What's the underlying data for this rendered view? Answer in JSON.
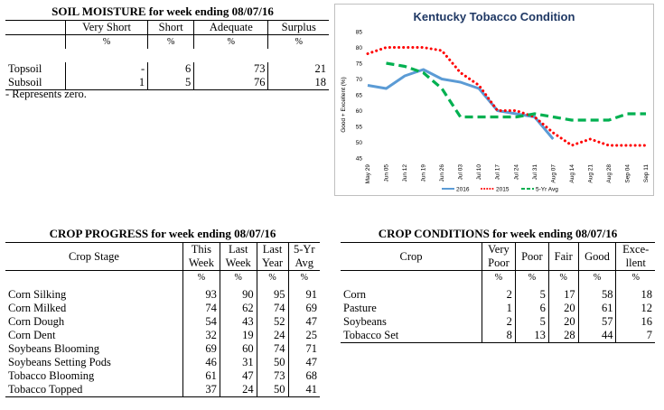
{
  "soil": {
    "title": "SOIL MOISTURE for week ending 08/07/16",
    "headers": [
      "Very Short",
      "Short",
      "Adequate",
      "Surplus"
    ],
    "pct": "%",
    "rows": [
      {
        "label": "Topsoil",
        "values": [
          "-",
          "6",
          "73",
          "21"
        ]
      },
      {
        "label": "Subsoil",
        "values": [
          "1",
          "5",
          "76",
          "18"
        ]
      }
    ],
    "note": "- Represents zero."
  },
  "progress": {
    "title": "CROP PROGRESS for week ending 08/07/16",
    "stage_header": "Crop Stage",
    "headers": [
      [
        "This",
        "Week"
      ],
      [
        "Last",
        "Week"
      ],
      [
        "Last",
        "Year"
      ],
      [
        "5-Yr",
        "Avg"
      ]
    ],
    "pct": "%",
    "rows": [
      {
        "label": "Corn Silking",
        "values": [
          "93",
          "90",
          "95",
          "91"
        ]
      },
      {
        "label": "Corn Milked",
        "values": [
          "74",
          "62",
          "74",
          "69"
        ]
      },
      {
        "label": "Corn Dough",
        "values": [
          "54",
          "43",
          "52",
          "47"
        ]
      },
      {
        "label": "Corn Dent",
        "values": [
          "32",
          "19",
          "24",
          "25"
        ]
      },
      {
        "label": "Soybeans Blooming",
        "values": [
          "69",
          "60",
          "74",
          "71"
        ]
      },
      {
        "label": "Soybeans Setting Pods",
        "values": [
          "46",
          "31",
          "50",
          "47"
        ]
      },
      {
        "label": "Tobacco Blooming",
        "values": [
          "61",
          "47",
          "73",
          "68"
        ]
      },
      {
        "label": "Tobacco Topped",
        "values": [
          "37",
          "24",
          "50",
          "41"
        ]
      }
    ]
  },
  "conditions": {
    "title": "CROP CONDITIONS for week ending 08/07/16",
    "crop_header": "Crop",
    "headers": [
      [
        "Very",
        "Poor"
      ],
      [
        "Poor",
        ""
      ],
      [
        "Fair",
        ""
      ],
      [
        "Good",
        ""
      ],
      [
        "Exce-",
        "llent"
      ]
    ],
    "pct": "%",
    "rows": [
      {
        "label": "Corn",
        "values": [
          "2",
          "5",
          "17",
          "58",
          "18"
        ]
      },
      {
        "label": "Pasture",
        "values": [
          "1",
          "6",
          "20",
          "61",
          "12"
        ]
      },
      {
        "label": "Soybeans",
        "values": [
          "2",
          "5",
          "20",
          "57",
          "16"
        ]
      },
      {
        "label": "Tobacco Set",
        "values": [
          "8",
          "13",
          "28",
          "44",
          "7"
        ]
      }
    ]
  },
  "chart_data": {
    "type": "line",
    "title": "Kentucky Tobacco Condition",
    "ylabel": "Good + Excellent (%)",
    "ylim": [
      45,
      85
    ],
    "yticks": [
      45,
      50,
      55,
      60,
      65,
      70,
      75,
      80,
      85
    ],
    "grid": false,
    "legend_position": "bottom",
    "categories": [
      "May 29",
      "Jun 05",
      "Jun 12",
      "Jun 19",
      "Jun 26",
      "Jul 03",
      "Jul 10",
      "Jul 17",
      "Jul 24",
      "Jul 31",
      "Aug 07",
      "Aug 14",
      "Aug 21",
      "Aug 28",
      "Sep 04",
      "Sep 11"
    ],
    "series": [
      {
        "name": "2016",
        "color": "#5b9bd5",
        "style": "solid",
        "values": [
          68,
          67,
          71,
          73,
          70,
          69,
          67,
          60,
          59,
          58,
          51,
          null,
          null,
          null,
          null,
          null
        ]
      },
      {
        "name": "2015",
        "color": "#ff0000",
        "style": "dotted",
        "values": [
          78,
          80,
          80,
          80,
          79,
          72,
          68,
          60,
          60,
          58,
          53,
          49,
          51,
          49,
          49,
          49
        ]
      },
      {
        "name": "5-Yr Avg",
        "color": "#00b050",
        "style": "dashed",
        "values": [
          null,
          75,
          74,
          72,
          67,
          58,
          58,
          58,
          58,
          59,
          58,
          57,
          57,
          57,
          59,
          59
        ]
      }
    ]
  }
}
